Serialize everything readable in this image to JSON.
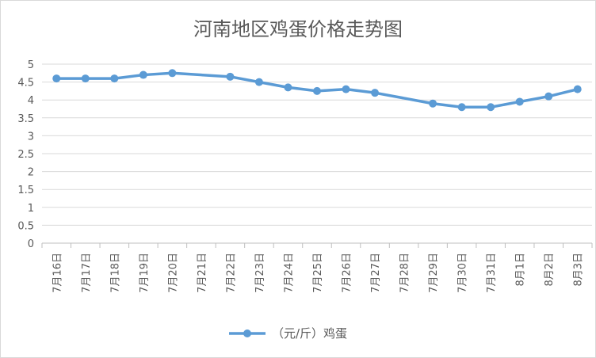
{
  "chart_data": {
    "type": "line",
    "title": "河南地区鸡蛋价格走势图",
    "xlabel": "",
    "ylabel": "",
    "categories": [
      "7月16日",
      "7月17日",
      "7月18日",
      "7月19日",
      "7月20日",
      "7月21日",
      "7月22日",
      "7月23日",
      "7月24日",
      "7月25日",
      "7月26日",
      "7月27日",
      "7月28日",
      "7月29日",
      "7月30日",
      "7月31日",
      "8月1日",
      "8月2日",
      "8月3日"
    ],
    "series": [
      {
        "name": "（元/斤）鸡蛋",
        "color": "#5b9bd5",
        "values": [
          4.6,
          4.6,
          4.6,
          4.7,
          4.75,
          null,
          4.65,
          4.5,
          4.35,
          4.25,
          4.3,
          4.2,
          null,
          3.9,
          3.8,
          3.8,
          3.95,
          4.1,
          4.3
        ]
      }
    ],
    "ylim": [
      0,
      5
    ],
    "yticks": [
      "0",
      "0.5",
      "1",
      "1.5",
      "2",
      "2.5",
      "3",
      "3.5",
      "4",
      "4.5",
      "5"
    ],
    "grid": true,
    "legend": "bottom"
  }
}
